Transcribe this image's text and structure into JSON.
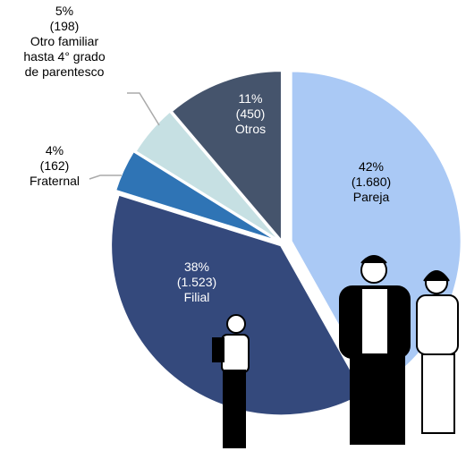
{
  "chart_data": {
    "type": "pie",
    "categories": [
      "Pareja",
      "Filial",
      "Fraternal",
      "Otro familiar hasta 4° grado de parentesco",
      "Otros"
    ],
    "values": [
      42,
      38,
      4,
      5,
      11
    ],
    "value_labels": [
      "42%",
      "38%",
      "4%",
      "5%",
      "11%"
    ],
    "counts": [
      1680,
      1523,
      162,
      198,
      450
    ],
    "count_labels": [
      "(1.680)",
      "(1.523)",
      "(162)",
      "(198)",
      "(450)"
    ],
    "colors": [
      "#aac9f5",
      "#34497c",
      "#2f74b5",
      "#c6e0e3",
      "#45546c"
    ]
  }
}
